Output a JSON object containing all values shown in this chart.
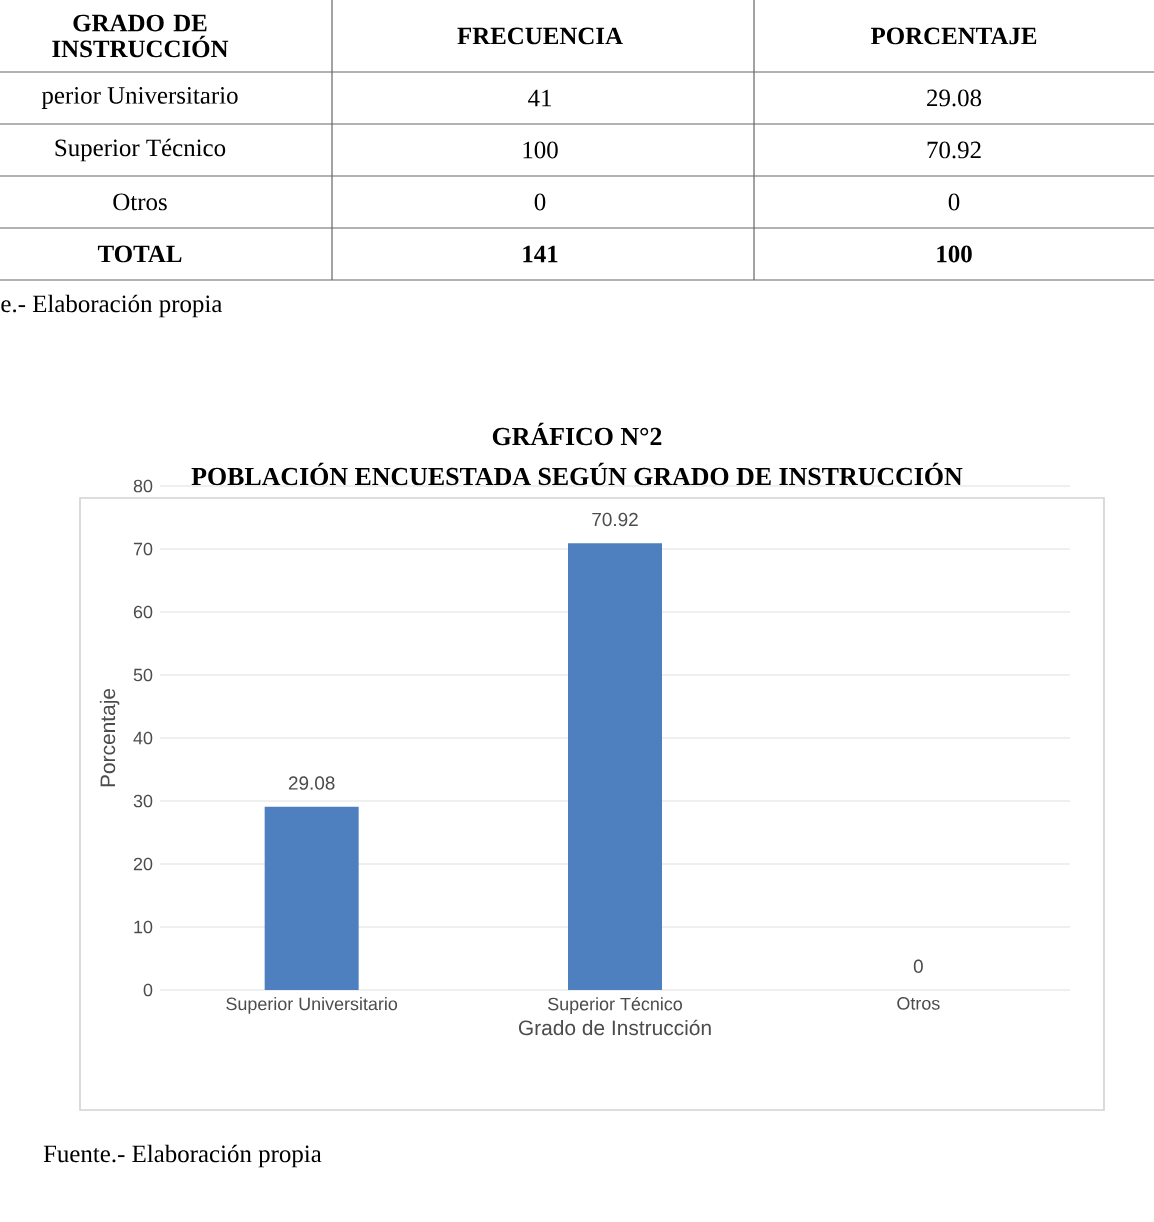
{
  "chart_data": [
    {
      "type": "other",
      "annotations": [
        "GRADO DE INSTRUCCIÓN",
        "FRECUENCIA",
        "PORCENTAJE",
        "perior Universitario",
        "41",
        "29.08",
        "Superior Técnico",
        "100",
        "70.92",
        "Otros",
        "0",
        "0",
        "TOTAL",
        "141",
        "100",
        "e.- Elaboración propia"
      ]
    },
    {
      "type": "bar",
      "title": "GRÁFICO N°2",
      "subtitle": "POBLACIÓN ENCUESTADA SEGÚN GRADO DE INSTRUCCIÓN",
      "categories": [
        "Superior Universitario",
        "Superior Técnico",
        "Otros"
      ],
      "values": [
        29.08,
        70.92,
        0
      ],
      "color": "#4e7fbf",
      "ylim": [
        0,
        80
      ],
      "yticks": [
        0,
        10,
        20,
        30,
        40,
        50,
        60,
        70,
        80
      ],
      "grid": "y",
      "xlabel": "Grado de Instrucción",
      "ylabel": "Porcentaje",
      "data_labels": true,
      "annotations": [
        "Fuente.- Elaboración propia"
      ]
    }
  ]
}
